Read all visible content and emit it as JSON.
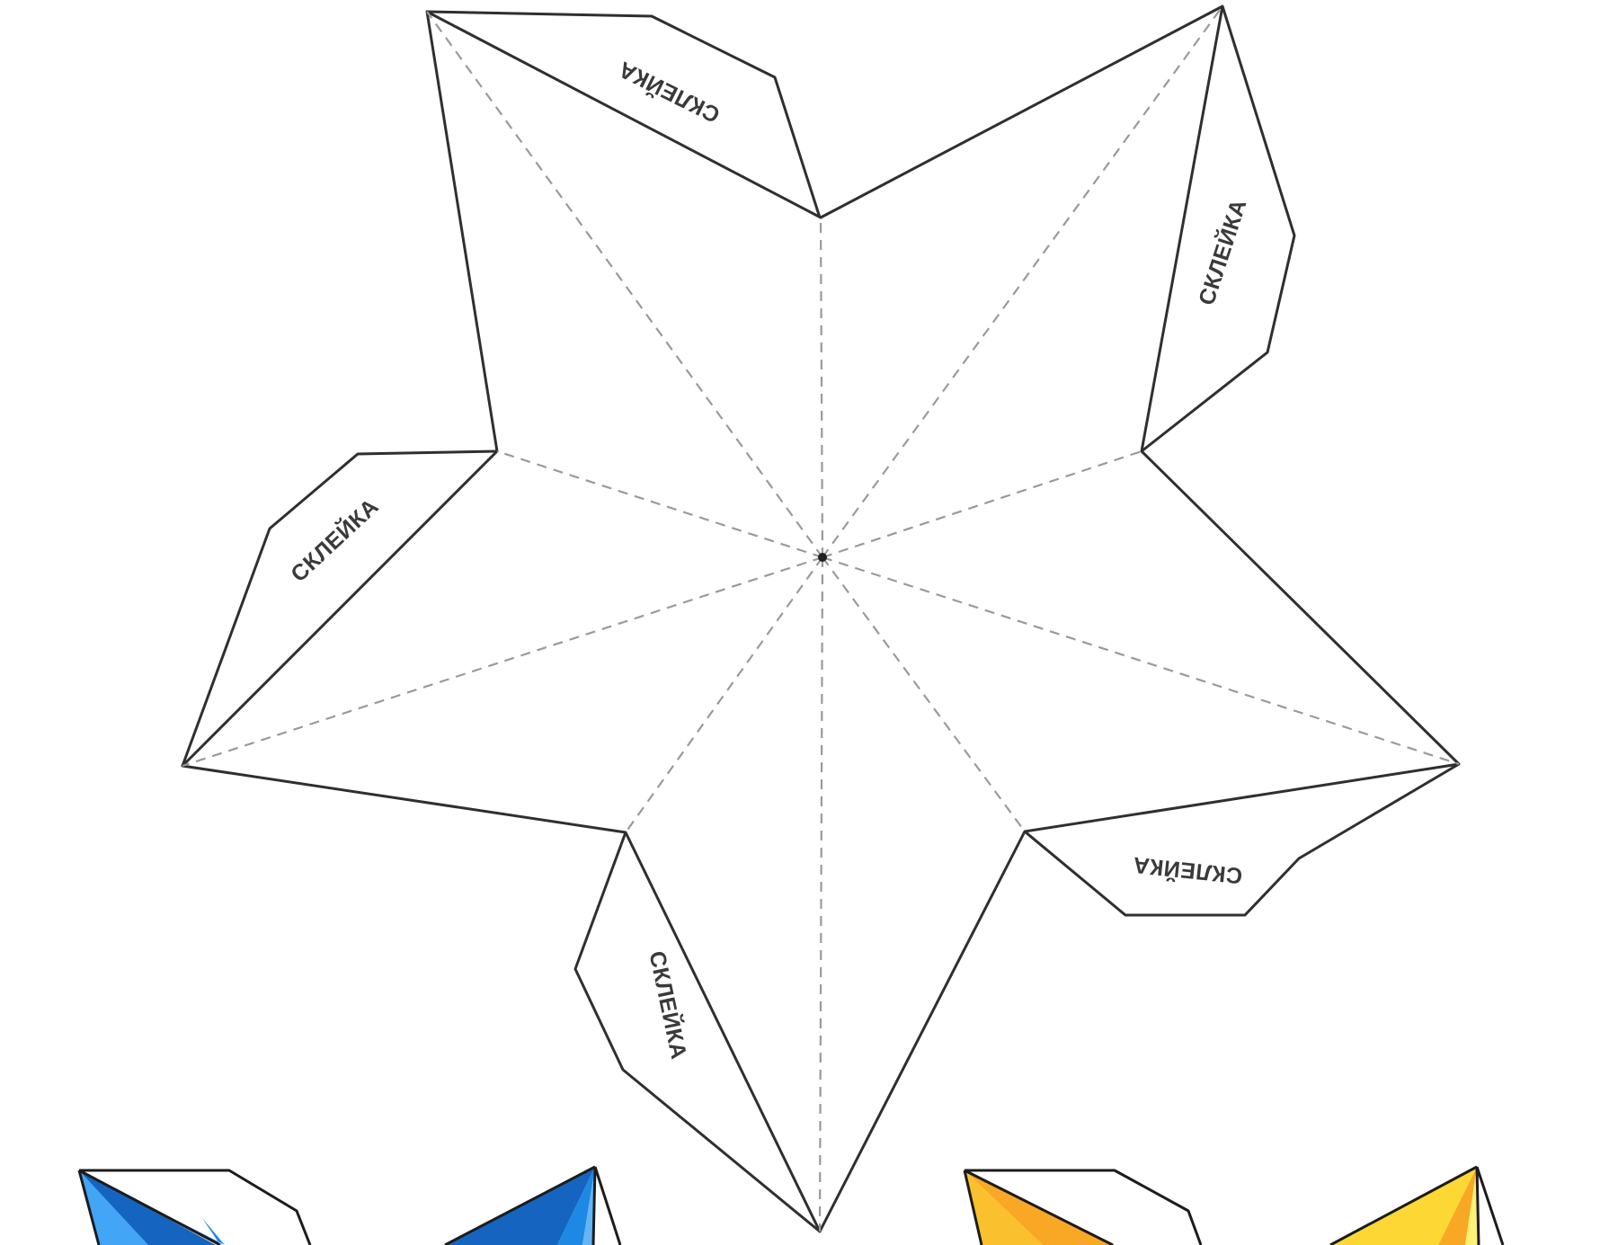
{
  "net": {
    "tab_labels": [
      "СКЛЕЙКА",
      "СКЛЕЙКА",
      "СКЛЕЙКА",
      "СКЛЕЙКА",
      "СКЛЕЙКА"
    ]
  },
  "previews": [
    {
      "name": "blue-star-preview",
      "colors": {
        "dark": "#1565c0",
        "mid": "#1e88e5",
        "light": "#64b5f6"
      }
    },
    {
      "name": "yellow-star-preview",
      "colors": {
        "dark": "#f9a825",
        "mid": "#fdd835",
        "light": "#fff176"
      }
    }
  ],
  "colors": {
    "line": "#2f2f2f",
    "fold": "#9a9a9a",
    "background": "#ffffff"
  }
}
